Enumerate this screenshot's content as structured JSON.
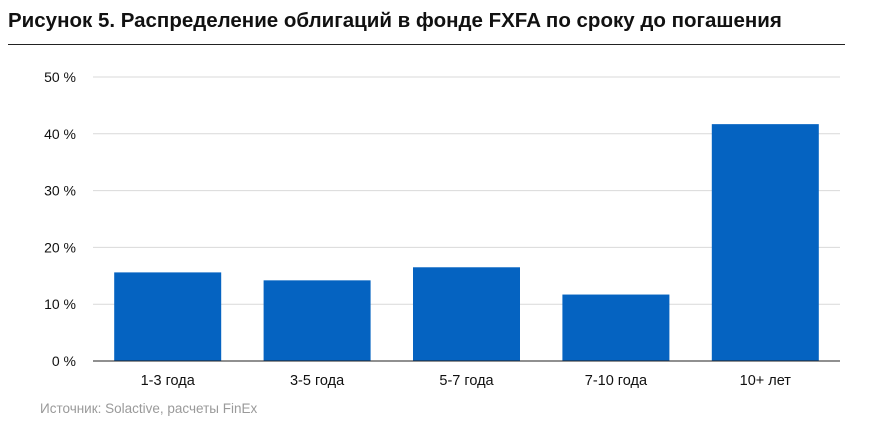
{
  "title": "Рисунок 5. Распределение облигаций в фонде FXFA по сроку до погашения",
  "source": "Источник: Solactive, расчеты FinEx",
  "colors": {
    "bar": "#0563c1",
    "grid": "#d9d9d9",
    "axis": "#222222",
    "text": "#111111"
  },
  "chart_data": {
    "type": "bar",
    "categories": [
      "1-3 года",
      "3-5 года",
      "5-7 года",
      "7-10 года",
      "10+ лет"
    ],
    "values": [
      15.6,
      14.2,
      16.5,
      11.7,
      41.7
    ],
    "ylim": [
      0,
      50
    ],
    "yticks": [
      0,
      10,
      20,
      30,
      40,
      50
    ],
    "ytick_labels": [
      "0 %",
      "10 %",
      "20 %",
      "30 %",
      "40 %",
      "50 %"
    ],
    "grid": true,
    "legend": "none",
    "xlabel": "",
    "ylabel": ""
  }
}
